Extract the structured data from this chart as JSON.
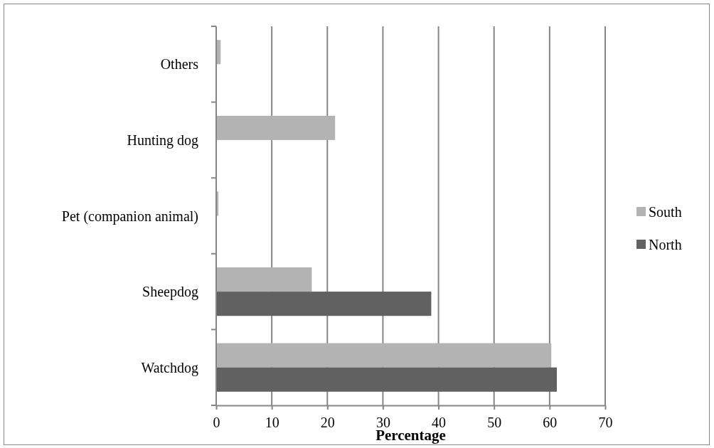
{
  "chart_data": {
    "type": "bar",
    "orientation": "horizontal",
    "xlabel": "Percentage",
    "categories": [
      "Others",
      "Hunting dog",
      "Pet (companion animal)",
      "Sheepdog",
      "Watchdog"
    ],
    "series": [
      {
        "name": "South",
        "color": "#b3b3b3",
        "values": [
          0.8,
          21.4,
          0.4,
          17.2,
          60.3
        ]
      },
      {
        "name": "North",
        "color": "#616161",
        "values": [
          0,
          0,
          0,
          38.7,
          61.3
        ]
      }
    ],
    "xlim": [
      0,
      70
    ],
    "xticks": [
      0,
      10,
      20,
      30,
      40,
      50,
      60,
      70
    ],
    "grid": "x",
    "legend": "right"
  }
}
